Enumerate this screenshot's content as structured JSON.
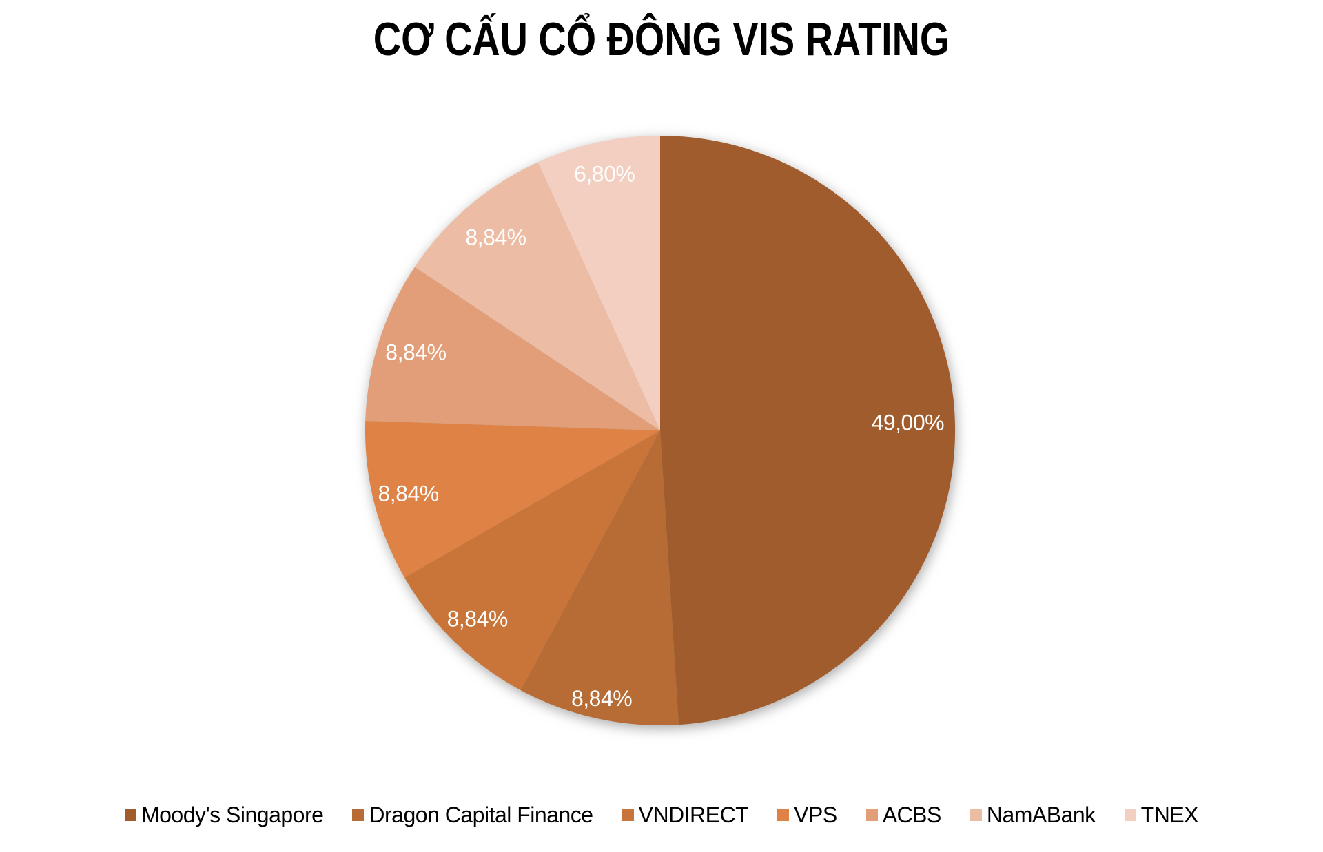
{
  "chart_data": {
    "type": "pie",
    "title": "CƠ CẤU CỔ ĐÔNG VIS RATING",
    "background": "#FFFFFF",
    "title_color": "#000000",
    "label_color": "#FFFFFF",
    "legend_position": "bottom",
    "legend_text_color": "#000000",
    "start_angle_deg": 0,
    "direction": "clockwise",
    "total": 100,
    "slices": [
      {
        "name": "Moody's Singapore",
        "value": 49.0,
        "label": "49,00%",
        "color": "#A15C2D"
      },
      {
        "name": "Dragon Capital Finance",
        "value": 8.84,
        "label": "8,84%",
        "color": "#B76B35"
      },
      {
        "name": "VNDIRECT",
        "value": 8.84,
        "label": "8,84%",
        "color": "#C97539"
      },
      {
        "name": "VPS",
        "value": 8.84,
        "label": "8,84%",
        "color": "#DE8245"
      },
      {
        "name": "ACBS",
        "value": 8.84,
        "label": "8,84%",
        "color": "#E29E78"
      },
      {
        "name": "NamABank",
        "value": 8.84,
        "label": "8,84%",
        "color": "#ECBCA4"
      },
      {
        "name": "TNEX",
        "value": 6.8,
        "label": "6,80%",
        "color": "#F2CFC0"
      }
    ]
  }
}
